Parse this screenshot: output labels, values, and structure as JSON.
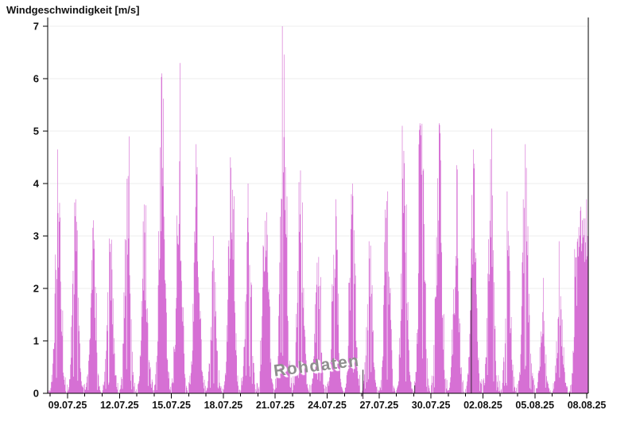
{
  "chart_data": {
    "type": "bar",
    "title": "Windgeschwindigkeit [m/s]",
    "ylabel": "Windgeschwindigkeit [m/s]",
    "xlabel": "",
    "series_name": "Rohdaten",
    "watermark": "Rohdaten",
    "ylim": [
      0,
      7
    ],
    "yticks": [
      0,
      1,
      2,
      3,
      4,
      5,
      6,
      7
    ],
    "grid": "horizontal-only",
    "legend": "none",
    "x_minor_tick_every_days": 1,
    "x_major_ticks": [
      {
        "label": "09.07.25",
        "day": 1
      },
      {
        "label": "12.07.25",
        "day": 4
      },
      {
        "label": "15.07.25",
        "day": 7
      },
      {
        "label": "18.07.25",
        "day": 10
      },
      {
        "label": "21.07.25",
        "day": 13
      },
      {
        "label": "24.07.25",
        "day": 16
      },
      {
        "label": "27.07.25",
        "day": 19
      },
      {
        "label": "30.07.25",
        "day": 22
      },
      {
        "label": "02.08.25",
        "day": 25
      },
      {
        "label": "05.08.25",
        "day": 28
      },
      {
        "label": "08.08.25",
        "day": 31
      }
    ],
    "daily_peaks": [
      {
        "date": "08.07.25",
        "peak": 4.65
      },
      {
        "date": "09.07.25",
        "peak": 3.7
      },
      {
        "date": "10.07.25",
        "peak": 3.3
      },
      {
        "date": "11.07.25",
        "peak": 2.95
      },
      {
        "date": "12.07.25",
        "peak": 4.9
      },
      {
        "date": "13.07.25",
        "peak": 3.6
      },
      {
        "date": "14.07.25",
        "peak": 6.1
      },
      {
        "date": "15.07.25",
        "peak": 6.3
      },
      {
        "date": "16.07.25",
        "peak": 4.75
      },
      {
        "date": "17.07.25",
        "peak": 3.0
      },
      {
        "date": "18.07.25",
        "peak": 4.5
      },
      {
        "date": "19.07.25",
        "peak": 4.0
      },
      {
        "date": "20.07.25",
        "peak": 3.45
      },
      {
        "date": "21.07.25",
        "peak": 7.0
      },
      {
        "date": "22.07.25",
        "peak": 4.25
      },
      {
        "date": "23.07.25",
        "peak": 2.6
      },
      {
        "date": "24.07.25",
        "peak": 3.7
      },
      {
        "date": "25.07.25",
        "peak": 4.0
      },
      {
        "date": "26.07.25",
        "peak": 2.9
      },
      {
        "date": "27.07.25",
        "peak": 3.85
      },
      {
        "date": "28.07.25",
        "peak": 5.1
      },
      {
        "date": "29.07.25",
        "peak": 5.15
      },
      {
        "date": "30.07.25",
        "peak": 5.15
      },
      {
        "date": "31.07.25",
        "peak": 4.35
      },
      {
        "date": "01.08.25",
        "peak": 4.65
      },
      {
        "date": "02.08.25",
        "peak": 5.05
      },
      {
        "date": "03.08.25",
        "peak": 3.85
      },
      {
        "date": "04.08.25",
        "peak": 4.75
      },
      {
        "date": "05.08.25",
        "peak": 2.2
      },
      {
        "date": "06.08.25",
        "peak": 2.9
      },
      {
        "date": "07.08.25",
        "peak": 3.7
      },
      {
        "date": "08.08.25",
        "peak": 3.0
      }
    ],
    "artifact_dark_lines": [
      {
        "day_offset": 18.07,
        "top_value": 0.45,
        "crosses_axis": true
      },
      {
        "day_offset": 21.06,
        "top_value": 0.15,
        "crosses_axis": false
      },
      {
        "day_offset": 24.33,
        "top_value": 2.2,
        "crosses_axis": false
      }
    ],
    "colors": {
      "bar": "#d670d4",
      "grid": "#ececec",
      "axis": "#000000",
      "tick_text": "#111111",
      "watermark": "#8f8f8f",
      "watermark_shadow": "#ffffff",
      "dark_line": "#3c2b3c",
      "background": "#ffffff"
    }
  }
}
